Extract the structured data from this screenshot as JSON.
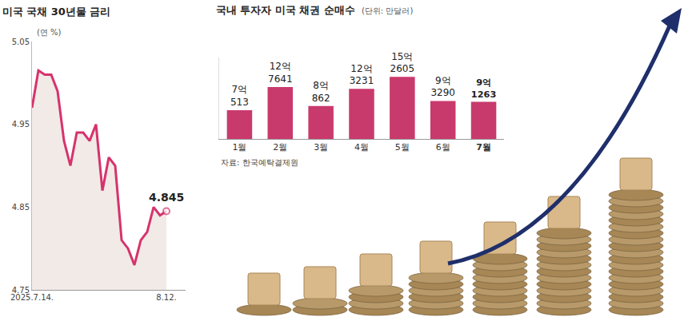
{
  "chart_data": [
    {
      "type": "line",
      "title": "미국 국채 30년물 금리",
      "ylabel": "(연 %)",
      "categories": [
        "2025.7.14.",
        null,
        null,
        null,
        null,
        null,
        null,
        null,
        null,
        null,
        null,
        null,
        null,
        null,
        null,
        null,
        null,
        null,
        null,
        null,
        null,
        "8.12."
      ],
      "values": [
        4.97,
        5.015,
        5.01,
        5.01,
        4.99,
        4.93,
        4.9,
        4.94,
        4.94,
        4.93,
        4.95,
        4.87,
        4.91,
        4.9,
        4.81,
        4.8,
        4.78,
        4.81,
        4.82,
        4.85,
        4.84,
        4.845
      ],
      "color": "#d6336c",
      "ylim": [
        4.75,
        5.05
      ],
      "yticks": [
        4.75,
        4.85,
        4.95,
        5.05
      ],
      "grid": false,
      "annotations": [
        {
          "x": 21,
          "y": 4.845,
          "text": "4.845"
        }
      ]
    },
    {
      "type": "bar",
      "title": "국내 투자자 미국 채권 순매수",
      "subtitle": "(단위: 만달러)",
      "source": "자료: 한국예탁결제원",
      "categories": [
        "1월",
        "2월",
        "3월",
        "4월",
        "5월",
        "6월",
        "7월"
      ],
      "values": [
        70513,
        127641,
        80862,
        123231,
        152605,
        93290,
        91263
      ],
      "value_labels": [
        "7억 513",
        "12억 7641",
        "8억 862",
        "12억 3231",
        "15억 2605",
        "9억 3290",
        "9억 1263"
      ],
      "data_labels": true,
      "color": "#c93a6c",
      "ylim": [
        0,
        200000
      ],
      "yticks": [],
      "tick_labels": "x",
      "grid": false
    }
  ]
}
